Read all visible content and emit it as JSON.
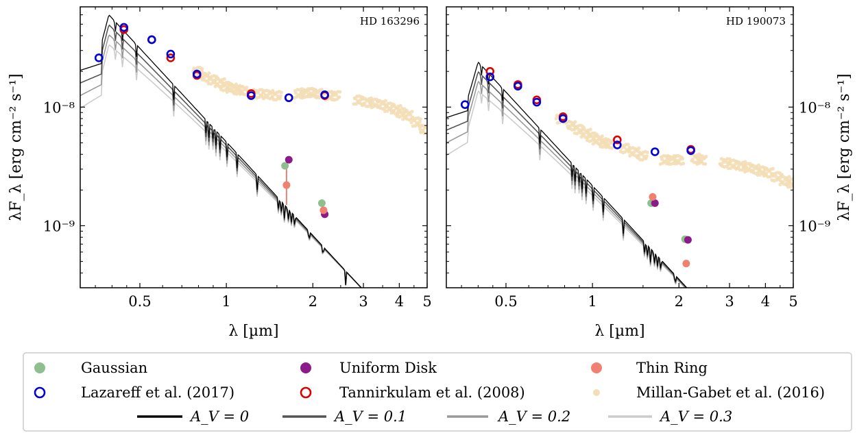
{
  "chart_data": [
    {
      "type": "scatter",
      "panel_label": "HD 163296",
      "xlabel": "λ [µm]",
      "ylabel": "λF_λ [erg cm⁻² s⁻¹]",
      "xscale": "log",
      "yscale": "log",
      "xlim": [
        0.31,
        5.0
      ],
      "ylim": [
        3e-10,
        7e-08
      ],
      "x_ticks": [
        "0.5",
        "1",
        "2",
        "3",
        "4",
        "5"
      ],
      "y_ticks": [
        "10⁻⁸",
        "10⁻⁹"
      ],
      "model_peak": {
        "wavelength": 0.39,
        "value": 6e-08
      },
      "gaussian": [
        {
          "x": 1.6,
          "y": 3.2e-09
        },
        {
          "x": 2.15,
          "y": 1.55e-09
        }
      ],
      "uniform_disk": [
        {
          "x": 1.65,
          "y": 3.6e-09
        },
        {
          "x": 2.2,
          "y": 1.25e-09
        }
      ],
      "thin_ring": [
        {
          "x": 1.62,
          "y": 2.2e-09,
          "err_lo": 1.5e-09,
          "err_hi": 3.3e-09
        },
        {
          "x": 2.18,
          "y": 1.35e-09
        }
      ],
      "lazareff": [
        {
          "x": 0.36,
          "y": 2.6e-08
        },
        {
          "x": 0.44,
          "y": 4.7e-08
        },
        {
          "x": 0.55,
          "y": 3.7e-08
        },
        {
          "x": 0.64,
          "y": 2.8e-08
        },
        {
          "x": 0.79,
          "y": 1.9e-08
        },
        {
          "x": 1.22,
          "y": 1.25e-08
        },
        {
          "x": 1.65,
          "y": 1.2e-08
        },
        {
          "x": 2.2,
          "y": 1.27e-08
        }
      ],
      "tannirkulam": [
        {
          "x": 0.44,
          "y": 4.5e-08
        },
        {
          "x": 0.55,
          "y": 3.7e-08
        },
        {
          "x": 0.64,
          "y": 2.6e-08
        },
        {
          "x": 0.79,
          "y": 1.85e-08
        },
        {
          "x": 1.22,
          "y": 1.3e-08
        },
        {
          "x": 1.65,
          "y": 1.2e-08
        },
        {
          "x": 2.2,
          "y": 1.25e-08
        }
      ],
      "millan_gabet_sparse": [
        {
          "x": 0.8,
          "y": 2e-08
        },
        {
          "x": 0.85,
          "y": 1.8e-08
        },
        {
          "x": 0.9,
          "y": 1.7e-08
        },
        {
          "x": 0.95,
          "y": 1.6e-08
        },
        {
          "x": 1.0,
          "y": 1.5e-08
        },
        {
          "x": 1.05,
          "y": 1.45e-08
        },
        {
          "x": 1.1,
          "y": 1.4e-08
        },
        {
          "x": 1.15,
          "y": 1.38e-08
        },
        {
          "x": 1.3,
          "y": 1.3e-08
        },
        {
          "x": 1.4,
          "y": 1.28e-08
        },
        {
          "x": 1.5,
          "y": 1.25e-08
        },
        {
          "x": 1.8,
          "y": 1.3e-08
        },
        {
          "x": 1.9,
          "y": 1.32e-08
        },
        {
          "x": 2.0,
          "y": 1.33e-08
        },
        {
          "x": 2.1,
          "y": 1.3e-08
        },
        {
          "x": 2.3,
          "y": 1.25e-08
        },
        {
          "x": 2.4,
          "y": 1.25e-08
        },
        {
          "x": 2.9,
          "y": 1.15e-08
        },
        {
          "x": 3.1,
          "y": 1.1e-08
        },
        {
          "x": 3.3,
          "y": 1.08e-08
        },
        {
          "x": 3.5,
          "y": 1.05e-08
        },
        {
          "x": 3.7,
          "y": 1e-08
        },
        {
          "x": 3.9,
          "y": 9.5e-09
        },
        {
          "x": 4.1,
          "y": 9e-09
        },
        {
          "x": 4.3,
          "y": 8.5e-09
        },
        {
          "x": 4.6,
          "y": 7.5e-09
        },
        {
          "x": 4.9,
          "y": 6.5e-09
        }
      ]
    },
    {
      "type": "scatter",
      "panel_label": "HD 190073",
      "xlabel": "λ [µm]",
      "ylabel": "λF_λ [erg cm⁻² s⁻¹]",
      "xscale": "log",
      "yscale": "log",
      "xlim": [
        0.31,
        5.0
      ],
      "ylim": [
        3e-10,
        7e-08
      ],
      "x_ticks": [
        "0.5",
        "1",
        "2",
        "3",
        "4",
        "5"
      ],
      "y_ticks": [
        "10⁻⁸",
        "10⁻⁹"
      ],
      "model_peak": {
        "wavelength": 0.4,
        "value": 2.4e-08
      },
      "gaussian": [
        {
          "x": 1.6,
          "y": 1.55e-09
        },
        {
          "x": 2.1,
          "y": 7.7e-10
        }
      ],
      "uniform_disk": [
        {
          "x": 1.65,
          "y": 1.55e-09
        },
        {
          "x": 2.15,
          "y": 7.6e-10
        }
      ],
      "thin_ring": [
        {
          "x": 1.62,
          "y": 1.75e-09
        },
        {
          "x": 2.12,
          "y": 4.8e-10
        }
      ],
      "lazareff": [
        {
          "x": 0.36,
          "y": 1.05e-08
        },
        {
          "x": 0.44,
          "y": 1.8e-08
        },
        {
          "x": 0.55,
          "y": 1.5e-08
        },
        {
          "x": 0.64,
          "y": 1.1e-08
        },
        {
          "x": 0.79,
          "y": 8e-09
        },
        {
          "x": 1.22,
          "y": 4.8e-09
        },
        {
          "x": 1.65,
          "y": 4.2e-09
        },
        {
          "x": 2.2,
          "y": 4.3e-09
        }
      ],
      "tannirkulam": [
        {
          "x": 0.44,
          "y": 2e-08
        },
        {
          "x": 0.55,
          "y": 1.55e-08
        },
        {
          "x": 0.64,
          "y": 1.15e-08
        },
        {
          "x": 0.79,
          "y": 8.3e-09
        },
        {
          "x": 1.22,
          "y": 5.3e-09
        },
        {
          "x": 2.2,
          "y": 4.4e-09
        }
      ],
      "millan_gabet_sparse": [
        {
          "x": 0.78,
          "y": 8e-09
        },
        {
          "x": 0.85,
          "y": 7e-09
        },
        {
          "x": 0.9,
          "y": 6.5e-09
        },
        {
          "x": 0.95,
          "y": 6e-09
        },
        {
          "x": 1.0,
          "y": 5.6e-09
        },
        {
          "x": 1.05,
          "y": 5.3e-09
        },
        {
          "x": 1.1,
          "y": 5e-09
        },
        {
          "x": 1.15,
          "y": 4.9e-09
        },
        {
          "x": 1.3,
          "y": 4.5e-09
        },
        {
          "x": 1.4,
          "y": 4.2e-09
        },
        {
          "x": 1.5,
          "y": 3.9e-09
        },
        {
          "x": 1.8,
          "y": 3.6e-09
        },
        {
          "x": 1.9,
          "y": 3.6e-09
        },
        {
          "x": 2.0,
          "y": 3.6e-09
        },
        {
          "x": 2.3,
          "y": 3.7e-09
        },
        {
          "x": 2.4,
          "y": 3.6e-09
        },
        {
          "x": 2.9,
          "y": 3.4e-09
        },
        {
          "x": 3.1,
          "y": 3.3e-09
        },
        {
          "x": 3.3,
          "y": 3.2e-09
        },
        {
          "x": 3.5,
          "y": 3.1e-09
        },
        {
          "x": 3.7,
          "y": 3e-09
        },
        {
          "x": 3.9,
          "y": 2.9e-09
        },
        {
          "x": 4.1,
          "y": 2.8e-09
        },
        {
          "x": 4.4,
          "y": 2.6e-09
        },
        {
          "x": 4.7,
          "y": 2.4e-09
        },
        {
          "x": 4.95,
          "y": 2.3e-09
        }
      ]
    }
  ],
  "legend": {
    "entries": [
      {
        "label": "Gaussian",
        "marker": "filled-circle",
        "color": "#8fbf8f"
      },
      {
        "label": "Uniform Disk",
        "marker": "filled-circle",
        "color": "#8b1a8b"
      },
      {
        "label": "Thin Ring",
        "marker": "filled-circle",
        "color": "#f08070"
      },
      {
        "label": "Lazareff et al. (2017)",
        "marker": "open-circle",
        "color": "#0000dd"
      },
      {
        "label": "Tannirkulam et al. (2008)",
        "marker": "open-circle",
        "color": "#dd0000"
      },
      {
        "label": "Millan-Gabet et al. (2016)",
        "marker": "small-dot",
        "color": "#f3deb6"
      },
      {
        "label": "A_V = 0",
        "marker": "line",
        "color": "#000000"
      },
      {
        "label": "A_V = 0.1",
        "marker": "line",
        "color": "#555555"
      },
      {
        "label": "A_V = 0.2",
        "marker": "line",
        "color": "#999999"
      },
      {
        "label": "A_V = 0.3",
        "marker": "line",
        "color": "#cccccc"
      }
    ]
  }
}
